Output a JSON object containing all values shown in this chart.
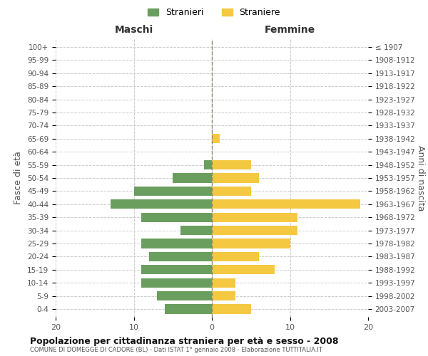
{
  "age_groups": [
    "100+",
    "95-99",
    "90-94",
    "85-89",
    "80-84",
    "75-79",
    "70-74",
    "65-69",
    "60-64",
    "55-59",
    "50-54",
    "45-49",
    "40-44",
    "35-39",
    "30-34",
    "25-29",
    "20-24",
    "15-19",
    "10-14",
    "5-9",
    "0-4"
  ],
  "birth_years": [
    "≤ 1907",
    "1908-1912",
    "1913-1917",
    "1918-1922",
    "1923-1927",
    "1928-1932",
    "1933-1937",
    "1938-1942",
    "1943-1947",
    "1948-1952",
    "1953-1957",
    "1958-1962",
    "1963-1967",
    "1968-1972",
    "1973-1977",
    "1978-1982",
    "1983-1987",
    "1988-1992",
    "1993-1997",
    "1998-2002",
    "2003-2007"
  ],
  "maschi": [
    0,
    0,
    0,
    0,
    0,
    0,
    0,
    0,
    0,
    1,
    5,
    10,
    13,
    9,
    4,
    9,
    8,
    9,
    9,
    7,
    6
  ],
  "femmine": [
    0,
    0,
    0,
    0,
    0,
    0,
    0,
    1,
    0,
    5,
    6,
    5,
    19,
    11,
    11,
    10,
    6,
    8,
    3,
    3,
    5
  ],
  "color_maschi": "#6a9e5e",
  "color_femmine": "#f5c842",
  "title": "Popolazione per cittadinanza straniera per età e sesso - 2008",
  "subtitle": "COMUNE DI DOMEGGE DI CADORE (BL) - Dati ISTAT 1° gennaio 2008 - Elaborazione TUTTITALIA.IT",
  "xlabel_left": "Maschi",
  "xlabel_right": "Femmine",
  "ylabel_left": "Fasce di età",
  "ylabel_right": "Anni di nascita",
  "legend_maschi": "Stranieri",
  "legend_femmine": "Straniere",
  "xlim": 20,
  "background_color": "#ffffff",
  "grid_color": "#cccccc"
}
